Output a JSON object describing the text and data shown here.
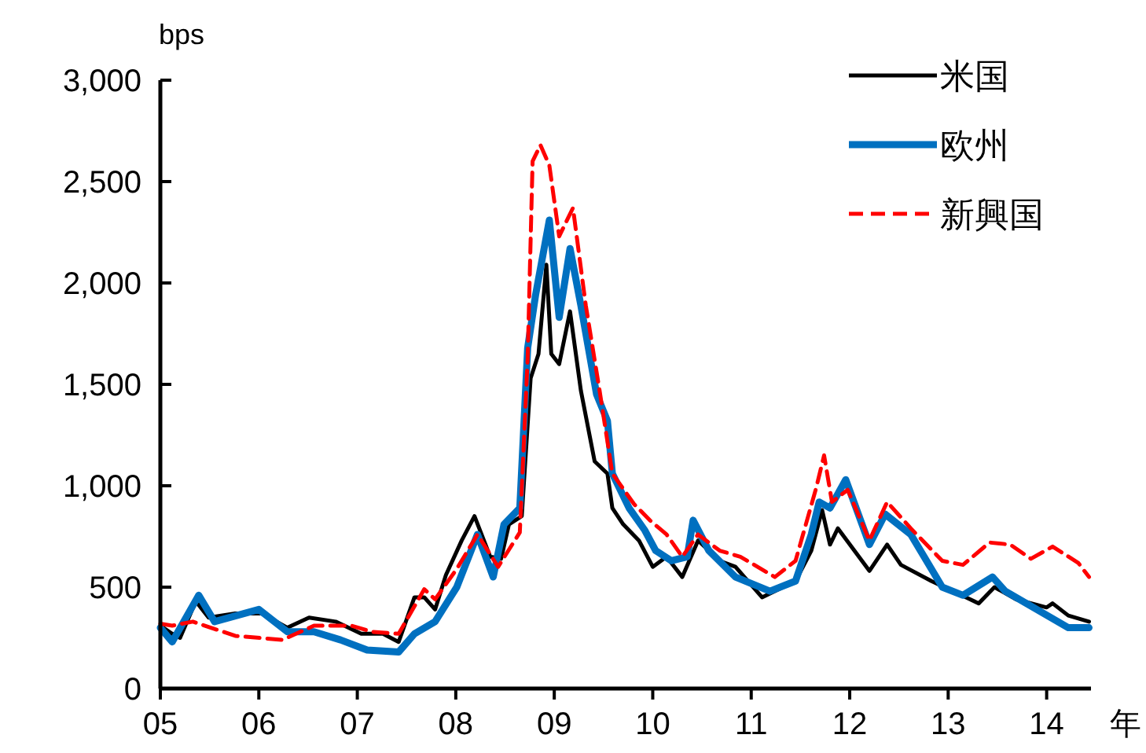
{
  "chart_data": {
    "type": "line",
    "xlabel": "年",
    "ylabel": "bps",
    "xlim": [
      2005,
      2014.45
    ],
    "xticks": [
      {
        "value": 2005,
        "label": "05"
      },
      {
        "value": 2006,
        "label": "06"
      },
      {
        "value": 2007,
        "label": "07"
      },
      {
        "value": 2008,
        "label": "08"
      },
      {
        "value": 2009,
        "label": "09"
      },
      {
        "value": 2010,
        "label": "10"
      },
      {
        "value": 2011,
        "label": "11"
      },
      {
        "value": 2012,
        "label": "12"
      },
      {
        "value": 2013,
        "label": "13"
      },
      {
        "value": 2014,
        "label": "14"
      }
    ],
    "ylim": [
      0,
      3000
    ],
    "yticks": [
      0,
      500,
      {
        "value": 1000,
        "label": "1,000"
      },
      {
        "value": 1500,
        "label": "1,500"
      },
      {
        "value": 2000,
        "label": "2,000"
      },
      {
        "value": 2500,
        "label": "2,500"
      },
      {
        "value": 3000,
        "label": "3,000"
      }
    ],
    "grid": false,
    "legend": "top right",
    "series": [
      {
        "name": "米国",
        "color": "#000000",
        "line_style": "solid",
        "x": [
          2005.0,
          2005.12,
          2005.2,
          2005.36,
          2005.49,
          2005.76,
          2006.03,
          2006.29,
          2006.51,
          2006.78,
          2007.04,
          2007.26,
          2007.42,
          2007.58,
          2007.68,
          2007.79,
          2007.9,
          2008.06,
          2008.19,
          2008.35,
          2008.46,
          2008.54,
          2008.67,
          2008.76,
          2008.84,
          2008.92,
          2008.97,
          2009.05,
          2009.16,
          2009.27,
          2009.41,
          2009.54,
          2009.59,
          2009.7,
          2009.86,
          2010.0,
          2010.14,
          2010.3,
          2010.46,
          2010.68,
          2010.84,
          2011.11,
          2011.45,
          2011.61,
          2011.72,
          2011.8,
          2011.88,
          2012.2,
          2012.38,
          2012.52,
          2012.83,
          2013.05,
          2013.31,
          2013.47,
          2013.69,
          2014.0,
          2014.06,
          2014.22,
          2014.43
        ],
        "values": [
          310,
          270,
          250,
          430,
          350,
          370,
          370,
          300,
          350,
          330,
          270,
          270,
          230,
          450,
          450,
          390,
          560,
          730,
          850,
          650,
          640,
          810,
          850,
          1530,
          1650,
          2090,
          1650,
          1600,
          1860,
          1470,
          1120,
          1060,
          890,
          810,
          730,
          600,
          650,
          550,
          730,
          630,
          600,
          450,
          530,
          680,
          880,
          710,
          790,
          580,
          710,
          610,
          530,
          480,
          420,
          500,
          440,
          400,
          420,
          360,
          330
        ]
      },
      {
        "name": "欧州",
        "color": "#0070c0",
        "line_style": "solid",
        "x": [
          2005.0,
          2005.12,
          2005.39,
          2005.55,
          2006.0,
          2006.29,
          2006.56,
          2006.83,
          2007.1,
          2007.42,
          2007.58,
          2007.79,
          2008.01,
          2008.22,
          2008.38,
          2008.49,
          2008.65,
          2008.73,
          2008.81,
          2008.95,
          2009.05,
          2009.16,
          2009.27,
          2009.43,
          2009.54,
          2009.59,
          2009.76,
          2009.92,
          2010.03,
          2010.19,
          2010.35,
          2010.41,
          2010.57,
          2010.84,
          2011.19,
          2011.45,
          2011.61,
          2011.69,
          2011.8,
          2011.96,
          2012.2,
          2012.36,
          2012.62,
          2012.94,
          2013.15,
          2013.45,
          2013.58,
          2013.9,
          2014.22,
          2014.43
        ],
        "values": [
          300,
          230,
          460,
          330,
          390,
          280,
          280,
          240,
          190,
          180,
          270,
          330,
          500,
          760,
          550,
          810,
          890,
          1680,
          1940,
          2310,
          1830,
          2170,
          1890,
          1450,
          1320,
          1060,
          890,
          780,
          680,
          630,
          650,
          830,
          680,
          550,
          480,
          530,
          760,
          920,
          890,
          1030,
          710,
          860,
          760,
          500,
          460,
          550,
          480,
          390,
          300,
          300
        ]
      },
      {
        "name": "新興国",
        "color": "#ff0000",
        "line_style": "dashed",
        "x": [
          2005.0,
          2005.12,
          2005.33,
          2005.76,
          2006.24,
          2006.56,
          2006.94,
          2007.15,
          2007.42,
          2007.68,
          2007.79,
          2008.01,
          2008.22,
          2008.43,
          2008.65,
          2008.73,
          2008.78,
          2008.86,
          2008.95,
          2009.05,
          2009.19,
          2009.32,
          2009.46,
          2009.59,
          2009.81,
          2009.97,
          2010.14,
          2010.3,
          2010.46,
          2010.68,
          2010.89,
          2011.24,
          2011.45,
          2011.66,
          2011.74,
          2011.82,
          2011.98,
          2012.2,
          2012.38,
          2012.62,
          2012.94,
          2013.15,
          2013.42,
          2013.63,
          2013.84,
          2014.06,
          2014.32,
          2014.43
        ],
        "values": [
          320,
          310,
          330,
          260,
          240,
          310,
          310,
          280,
          270,
          490,
          440,
          590,
          760,
          600,
          770,
          1630,
          2600,
          2680,
          2580,
          2230,
          2370,
          1890,
          1470,
          1060,
          910,
          830,
          760,
          650,
          760,
          680,
          650,
          550,
          630,
          990,
          1150,
          920,
          980,
          730,
          920,
          790,
          630,
          610,
          720,
          710,
          640,
          700,
          620,
          550
        ]
      }
    ]
  }
}
